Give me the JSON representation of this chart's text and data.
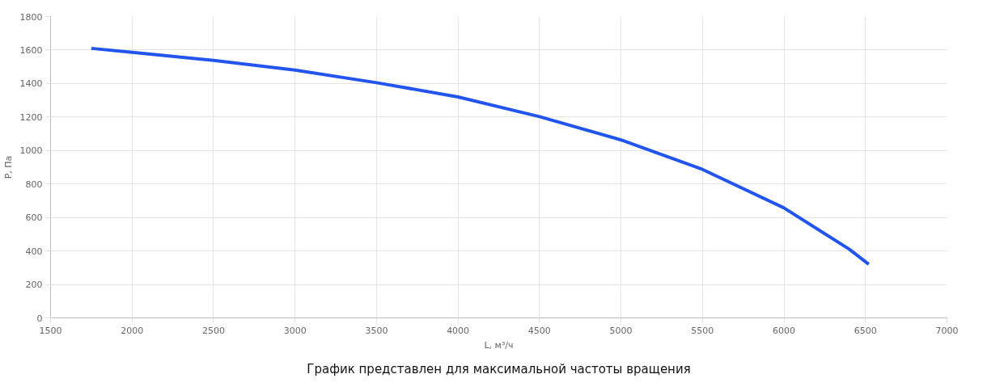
{
  "chart_data": {
    "type": "line",
    "xlabel": "L, м³/ч",
    "ylabel": "P, Па",
    "annotations": [
      "График представлен для максимальной частоты вращения"
    ],
    "x": [
      1750,
      2000,
      2500,
      3000,
      3500,
      4000,
      4500,
      5000,
      5500,
      6000,
      6400,
      6520
    ],
    "series": [
      {
        "color": "#2255ee",
        "values": [
          1610,
          1587,
          1538,
          1480,
          1405,
          1320,
          1202,
          1063,
          887,
          657,
          411,
          320
        ]
      }
    ],
    "xlim": [
      1500,
      7000
    ],
    "xticks": [
      1500,
      2000,
      2500,
      3000,
      3500,
      4000,
      4500,
      5000,
      5500,
      6000,
      6500,
      7000
    ],
    "ylim": [
      0,
      1800
    ],
    "yticks": [
      0,
      200,
      400,
      600,
      800,
      1000,
      1200,
      1400,
      1600,
      1800
    ],
    "grid": true,
    "marker": "none",
    "line_style": "solid"
  }
}
